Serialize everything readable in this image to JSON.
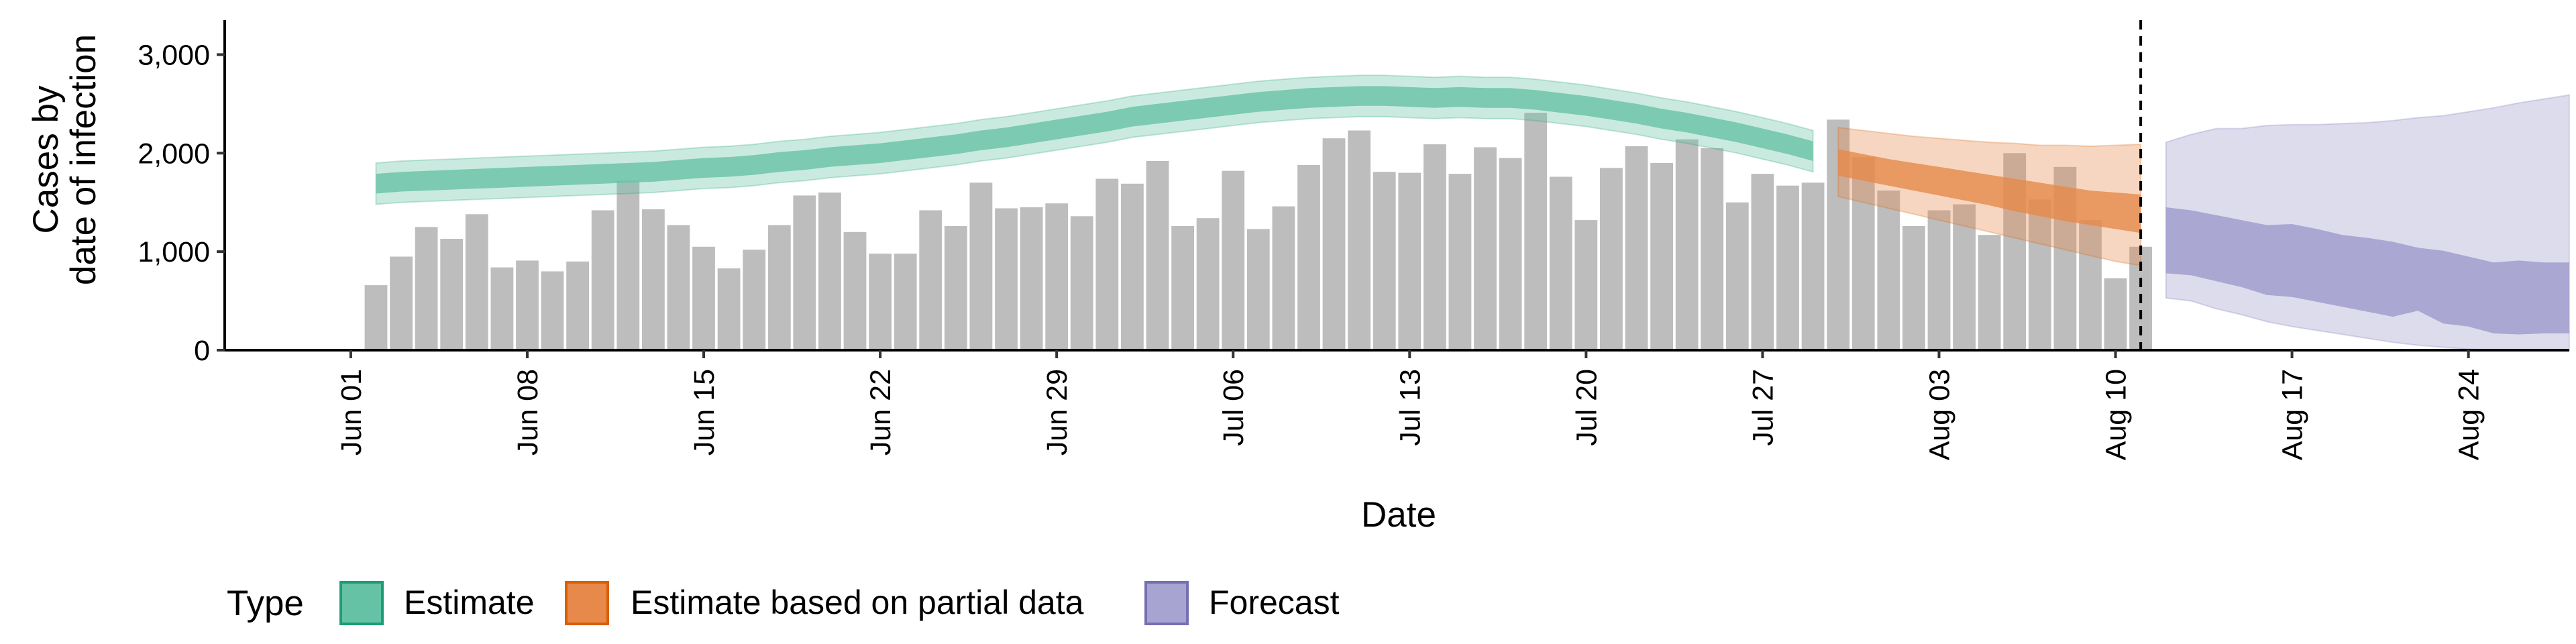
{
  "chart_data": {
    "type": "bar",
    "title": "",
    "xlabel": "Date",
    "ylabel_lines": [
      "Cases by",
      "date of infection"
    ],
    "ylim": [
      0,
      3350
    ],
    "yticks": [
      0,
      1000,
      2000,
      3000
    ],
    "ytick_labels": [
      "0",
      "1,000",
      "2,000",
      "3,000"
    ],
    "xlim": [
      "2020-05-27",
      "2020-08-28"
    ],
    "xticks": [
      "2020-06-01",
      "2020-06-08",
      "2020-06-15",
      "2020-06-22",
      "2020-06-29",
      "2020-07-06",
      "2020-07-13",
      "2020-07-20",
      "2020-07-27",
      "2020-08-03",
      "2020-08-10",
      "2020-08-17",
      "2020-08-24"
    ],
    "xtick_labels": [
      "Jun 01",
      "Jun 08",
      "Jun 15",
      "Jun 22",
      "Jun 29",
      "Jul 06",
      "Jul 13",
      "Jul 20",
      "Jul 27",
      "Aug 03",
      "Aug 10",
      "Aug 17",
      "Aug 24"
    ],
    "grid": false,
    "legend_position": "bottom-left",
    "forecast_line_date": "2020-08-11",
    "colors": {
      "bars": "#bdbdbd",
      "estimate": "#66c2a5",
      "estimate_partial": "#e6894a",
      "forecast": "#9e9acb",
      "estimate_border": "#1b9e77",
      "estimate_partial_border": "#d95f02",
      "forecast_border": "#7570b3"
    },
    "observed": {
      "start": "2020-06-02",
      "values": [
        660,
        950,
        1250,
        1130,
        1380,
        840,
        910,
        800,
        900,
        1420,
        1720,
        1430,
        1270,
        1050,
        830,
        1020,
        1270,
        1570,
        1600,
        1200,
        980,
        980,
        1420,
        1260,
        1700,
        1440,
        1450,
        1490,
        1360,
        1740,
        1690,
        1920,
        1260,
        1340,
        1820,
        1230,
        1460,
        1880,
        2150,
        2230,
        1810,
        1800,
        2090,
        1790,
        2060,
        1950,
        2410,
        1760,
        1320,
        1850,
        2070,
        1900,
        2140,
        2050,
        1500,
        1790,
        1670,
        1700,
        2340,
        1960,
        1620,
        1260,
        1420,
        1480,
        1170,
        2000,
        1530,
        1860,
        1320,
        730,
        1050
      ]
    },
    "series": [
      {
        "name": "Estimate",
        "start": "2020-06-02",
        "median": [
          1690,
          1710,
          1720,
          1730,
          1740,
          1750,
          1760,
          1770,
          1780,
          1790,
          1800,
          1810,
          1830,
          1850,
          1860,
          1880,
          1910,
          1930,
          1960,
          1980,
          2000,
          2030,
          2060,
          2090,
          2130,
          2160,
          2200,
          2240,
          2280,
          2320,
          2370,
          2400,
          2430,
          2460,
          2490,
          2520,
          2540,
          2560,
          2570,
          2580,
          2580,
          2570,
          2560,
          2570,
          2560,
          2560,
          2540,
          2510,
          2480,
          2440,
          2400,
          2350,
          2310,
          2260,
          2210,
          2150,
          2090,
          2020
        ],
        "inner_lo": [
          1590,
          1610,
          1620,
          1630,
          1640,
          1650,
          1660,
          1670,
          1680,
          1690,
          1700,
          1710,
          1730,
          1750,
          1760,
          1780,
          1810,
          1830,
          1860,
          1880,
          1900,
          1930,
          1960,
          1990,
          2030,
          2060,
          2100,
          2140,
          2180,
          2220,
          2270,
          2300,
          2330,
          2360,
          2390,
          2420,
          2440,
          2460,
          2470,
          2480,
          2480,
          2470,
          2460,
          2470,
          2460,
          2460,
          2440,
          2410,
          2380,
          2340,
          2300,
          2250,
          2210,
          2160,
          2110,
          2050,
          1990,
          1920
        ],
        "inner_hi": [
          1790,
          1810,
          1820,
          1830,
          1840,
          1850,
          1860,
          1870,
          1880,
          1890,
          1900,
          1910,
          1930,
          1950,
          1960,
          1980,
          2010,
          2030,
          2060,
          2080,
          2100,
          2130,
          2160,
          2190,
          2230,
          2260,
          2300,
          2340,
          2380,
          2420,
          2470,
          2500,
          2530,
          2560,
          2590,
          2620,
          2640,
          2660,
          2670,
          2680,
          2680,
          2670,
          2660,
          2670,
          2660,
          2660,
          2640,
          2610,
          2580,
          2540,
          2500,
          2450,
          2410,
          2360,
          2310,
          2250,
          2190,
          2120
        ],
        "outer_lo": [
          1480,
          1500,
          1510,
          1520,
          1530,
          1540,
          1550,
          1560,
          1570,
          1580,
          1590,
          1600,
          1620,
          1640,
          1650,
          1670,
          1700,
          1720,
          1750,
          1770,
          1790,
          1820,
          1850,
          1880,
          1920,
          1950,
          1990,
          2030,
          2070,
          2110,
          2160,
          2190,
          2220,
          2250,
          2280,
          2310,
          2330,
          2350,
          2360,
          2370,
          2370,
          2360,
          2350,
          2360,
          2350,
          2350,
          2330,
          2300,
          2270,
          2230,
          2190,
          2140,
          2100,
          2050,
          2000,
          1940,
          1880,
          1810
        ],
        "outer_hi": [
          1900,
          1920,
          1930,
          1940,
          1950,
          1960,
          1970,
          1980,
          1990,
          2000,
          2010,
          2020,
          2040,
          2060,
          2070,
          2090,
          2120,
          2140,
          2170,
          2190,
          2210,
          2240,
          2270,
          2300,
          2340,
          2370,
          2410,
          2450,
          2490,
          2530,
          2580,
          2610,
          2640,
          2670,
          2700,
          2730,
          2750,
          2770,
          2780,
          2790,
          2790,
          2780,
          2770,
          2780,
          2770,
          2770,
          2750,
          2720,
          2690,
          2650,
          2610,
          2560,
          2520,
          2470,
          2420,
          2360,
          2300,
          2230
        ]
      },
      {
        "name": "Estimate based on partial data",
        "start": "2020-07-30",
        "median": [
          1900,
          1850,
          1800,
          1760,
          1720,
          1680,
          1640,
          1590,
          1550,
          1500,
          1460,
          1430,
          1400
        ],
        "inner_lo": [
          1770,
          1720,
          1670,
          1620,
          1570,
          1520,
          1470,
          1410,
          1360,
          1310,
          1270,
          1230,
          1190
        ],
        "inner_hi": [
          2040,
          1990,
          1940,
          1900,
          1860,
          1820,
          1780,
          1740,
          1700,
          1660,
          1620,
          1600,
          1580
        ],
        "outer_lo": [
          1560,
          1500,
          1440,
          1380,
          1320,
          1260,
          1200,
          1140,
          1080,
          1020,
          960,
          900,
          860
        ],
        "outer_hi": [
          2260,
          2230,
          2200,
          2170,
          2150,
          2130,
          2110,
          2100,
          2080,
          2080,
          2070,
          2080,
          2090
        ]
      },
      {
        "name": "Forecast",
        "start": "2020-08-12",
        "median": [
          1090,
          1050,
          1000,
          950,
          890,
          850,
          790,
          750,
          730,
          710,
          680,
          630,
          570,
          550,
          520,
          460,
          440
        ],
        "inner_lo": [
          780,
          760,
          700,
          640,
          560,
          540,
          490,
          440,
          390,
          340,
          400,
          270,
          240,
          170,
          160,
          170,
          170
        ],
        "inner_hi": [
          1450,
          1420,
          1370,
          1320,
          1270,
          1280,
          1230,
          1170,
          1140,
          1100,
          1040,
          1010,
          950,
          890,
          910,
          890,
          890
        ],
        "outer_lo": [
          530,
          500,
          420,
          360,
          290,
          240,
          200,
          160,
          120,
          80,
          50,
          30,
          10,
          0,
          0,
          0,
          0
        ],
        "outer_hi": [
          2110,
          2190,
          2250,
          2250,
          2280,
          2290,
          2290,
          2300,
          2310,
          2330,
          2360,
          2380,
          2420,
          2460,
          2510,
          2550,
          2590
        ]
      }
    ],
    "legend": {
      "title": "Type",
      "items": [
        "Estimate",
        "Estimate based on partial data",
        "Forecast"
      ]
    }
  }
}
